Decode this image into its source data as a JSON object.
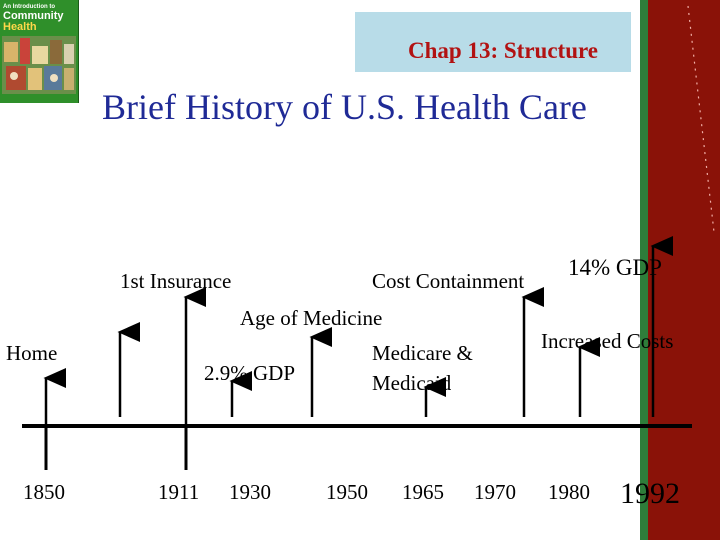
{
  "colors": {
    "title": "#1f2a96",
    "banner_bg": "#b8dce8",
    "banner_text": "#b21212",
    "strip_red": "#8a1208",
    "book_green": "#2f8f2a",
    "timeline": "#000000"
  },
  "book": {
    "line1": "An Introduction to",
    "line2": "Community",
    "line3": "Health"
  },
  "header": {
    "chapter": "Chap 13: Structure",
    "title": "Brief History of U.S. Health Care"
  },
  "timeline": {
    "years": [
      "1850",
      "1911",
      "1930",
      "1950",
      "1965",
      "1970",
      "1980",
      "1992"
    ],
    "events": {
      "home": "Home",
      "first_insurance": "1st Insurance",
      "gdp_1930": "2.9% GDP",
      "age_of_medicine": "Age of Medicine",
      "medicare_line1": "Medicare &",
      "medicare_line2": "Medicaid",
      "cost_containment": "Cost Containment",
      "increased_costs": "Increased Costs",
      "gdp_1992": "14% GDP"
    }
  }
}
